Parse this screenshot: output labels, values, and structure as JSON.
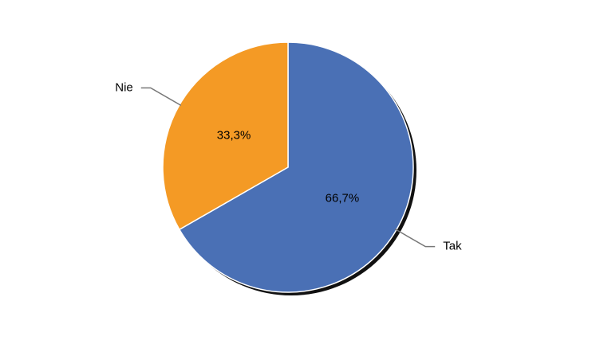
{
  "chart_data": {
    "type": "pie",
    "categories": [
      "Tak",
      "Nie"
    ],
    "values": [
      66.7,
      33.3
    ],
    "value_labels": [
      "66,7%",
      "33,3%"
    ],
    "colors": [
      "#4a70b5",
      "#f49a25"
    ]
  }
}
